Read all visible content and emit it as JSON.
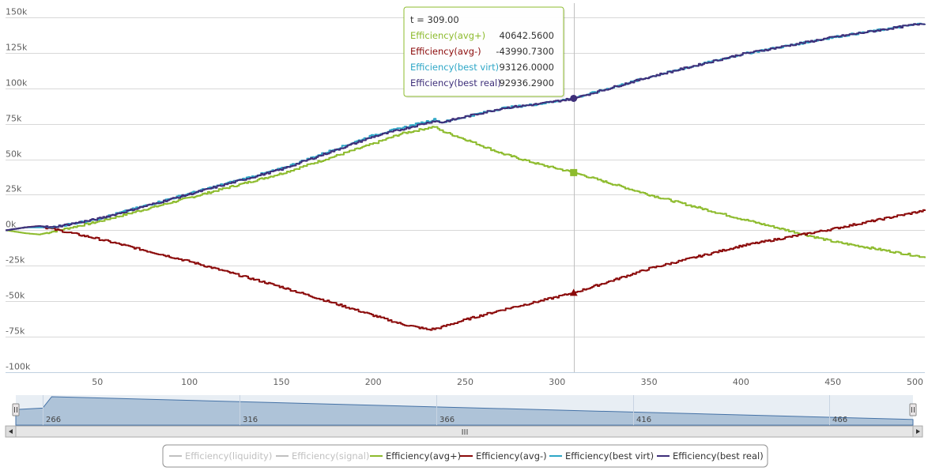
{
  "chart_data": {
    "type": "line",
    "x_axis": {
      "range": [
        0,
        500
      ],
      "ticks": [
        50,
        100,
        150,
        200,
        250,
        300,
        350,
        400,
        450,
        500
      ]
    },
    "y_axis": {
      "range": [
        -100000,
        160000
      ],
      "tick_values": [
        150000,
        125000,
        100000,
        75000,
        50000,
        25000,
        0,
        -25000,
        -50000,
        -75000,
        -100000
      ],
      "tick_labels": [
        "150k",
        "125k",
        "100k",
        "75k",
        "50k",
        "25k",
        "0k",
        "-25k",
        "-50k",
        "-75k",
        "-100k"
      ]
    },
    "grid": true,
    "series": [
      {
        "name": "Efficiency(liquidity)",
        "color": "#c0c0c0",
        "visible": false,
        "x": [],
        "y": []
      },
      {
        "name": "Efficiency(signal)",
        "color": "#c0c0c0",
        "visible": false,
        "x": [],
        "y": []
      },
      {
        "name": "Efficiency(avg+)",
        "color": "#8dbb2d",
        "visible": true,
        "marker": "square",
        "x": [
          0,
          10,
          18,
          25,
          50,
          100,
          150,
          200,
          215,
          233,
          237,
          250,
          270,
          290,
          309,
          350,
          400,
          450,
          500
        ],
        "y": [
          0,
          -2000,
          -3000,
          -1000,
          6000,
          23000,
          40000,
          61000,
          68000,
          73000,
          70000,
          64000,
          54000,
          46500,
          40642.56,
          25000,
          8000,
          -8000,
          -19000
        ]
      },
      {
        "name": "Efficiency(avg-)",
        "color": "#8b0a0a",
        "visible": true,
        "marker": "triangle",
        "x": [
          0,
          10,
          18,
          25,
          50,
          100,
          150,
          200,
          215,
          230,
          235,
          250,
          270,
          290,
          309,
          350,
          400,
          450,
          500
        ],
        "y": [
          0,
          2000,
          3000,
          1000,
          -6000,
          -22000,
          -40000,
          -60000,
          -66000,
          -70000,
          -69000,
          -63000,
          -56000,
          -50000,
          -43990.73,
          -27000,
          -11000,
          1000,
          14000
        ]
      },
      {
        "name": "Efficiency(best virt)",
        "color": "#2ea7c7",
        "visible": true,
        "x": [
          0,
          10,
          25,
          50,
          100,
          150,
          200,
          215,
          233,
          237,
          250,
          270,
          290,
          309,
          350,
          400,
          450,
          500
        ],
        "y": [
          0,
          2000,
          2000,
          8000,
          26000,
          43500,
          67000,
          72000,
          78000,
          76000,
          80000,
          86000,
          89000,
          93126,
          108000,
          124000,
          136000,
          146000
        ]
      },
      {
        "name": "Efficiency(best real)",
        "color": "#3e2f7a",
        "visible": true,
        "marker": "circle",
        "x": [
          0,
          10,
          18,
          25,
          50,
          100,
          150,
          200,
          215,
          233,
          237,
          250,
          270,
          290,
          309,
          350,
          400,
          450,
          500
        ],
        "y": [
          0,
          2000,
          3000,
          2000,
          8000,
          25500,
          43000,
          66000,
          71000,
          77000,
          76000,
          80000,
          86000,
          89000,
          92936.29,
          108000,
          124000,
          136000,
          146000
        ]
      }
    ],
    "crosshair_x": 309,
    "tooltip": {
      "title": "t = 309.00",
      "rows": [
        {
          "label": "Efficiency(avg+)",
          "value": "40642.5600",
          "color": "#8dbb2d"
        },
        {
          "label": "Efficiency(avg-)",
          "value": "-43990.7300",
          "color": "#8b0a0a"
        },
        {
          "label": "Efficiency(best virt)",
          "value": "93126.0000",
          "color": "#2ea7c7"
        },
        {
          "label": "Efficiency(best real)",
          "value": "92936.2900",
          "color": "#3e2f7a"
        }
      ]
    },
    "navigator": {
      "labels": [
        "266",
        "316",
        "366",
        "416",
        "466"
      ],
      "series_x": [
        0,
        0.03,
        0.04,
        1.0
      ],
      "series_y": [
        0.55,
        0.6,
        1.0,
        0.2
      ]
    },
    "scrollbar_grip": "III",
    "legend": {
      "placement": "bottom-center",
      "items": [
        {
          "label": "Efficiency(liquidity)",
          "color": "#c0c0c0",
          "disabled": true
        },
        {
          "label": "Efficiency(signal)",
          "color": "#c0c0c0",
          "disabled": true
        },
        {
          "label": "Efficiency(avg+)",
          "color": "#8dbb2d",
          "disabled": false
        },
        {
          "label": "Efficiency(avg-)",
          "color": "#8b0a0a",
          "disabled": false
        },
        {
          "label": "Efficiency(best virt)",
          "color": "#2ea7c7",
          "disabled": false
        },
        {
          "label": "Efficiency(best real)",
          "color": "#3e2f7a",
          "disabled": false
        }
      ]
    }
  }
}
